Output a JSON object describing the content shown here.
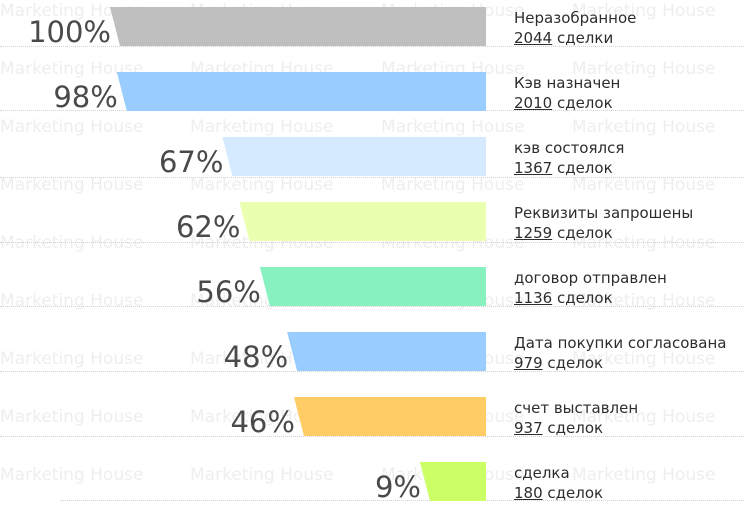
{
  "watermark": {
    "text": "Marketing House"
  },
  "chart_data": {
    "type": "funnel",
    "stages": [
      {
        "name": "Неразобранное",
        "percent": 100,
        "percent_label": "100%",
        "count": 2044,
        "count_text": "2044",
        "count_unit": "сделки",
        "color": "#bfbfbf"
      },
      {
        "name": "Кэв назначен",
        "percent": 98,
        "percent_label": "98%",
        "count": 2010,
        "count_text": "2010",
        "count_unit": "сделок",
        "color": "#99ccff"
      },
      {
        "name": "кэв состоялся",
        "percent": 67,
        "percent_label": "67%",
        "count": 1367,
        "count_text": "1367",
        "count_unit": "сделок",
        "color": "#d6eaff"
      },
      {
        "name": "Реквизиты запрошены",
        "percent": 62,
        "percent_label": "62%",
        "count": 1259,
        "count_text": "1259",
        "count_unit": "сделок",
        "color": "#ebffb1"
      },
      {
        "name": "договор отправлен",
        "percent": 56,
        "percent_label": "56%",
        "count": 1136,
        "count_text": "1136",
        "count_unit": "сделок",
        "color": "#87f2c0"
      },
      {
        "name": "Дата покупки согласована",
        "percent": 48,
        "percent_label": "48%",
        "count": 979,
        "count_text": "979",
        "count_unit": "сделок",
        "color": "#99ccff"
      },
      {
        "name": "счет выставлен",
        "percent": 46,
        "percent_label": "46%",
        "count": 937,
        "count_text": "937",
        "count_unit": "сделок",
        "color": "#ffcc66"
      },
      {
        "name": "сделка",
        "percent": 9,
        "percent_label": "9%",
        "count": 180,
        "count_text": "180",
        "count_unit": "сделок",
        "color": "#ccff66"
      }
    ]
  }
}
